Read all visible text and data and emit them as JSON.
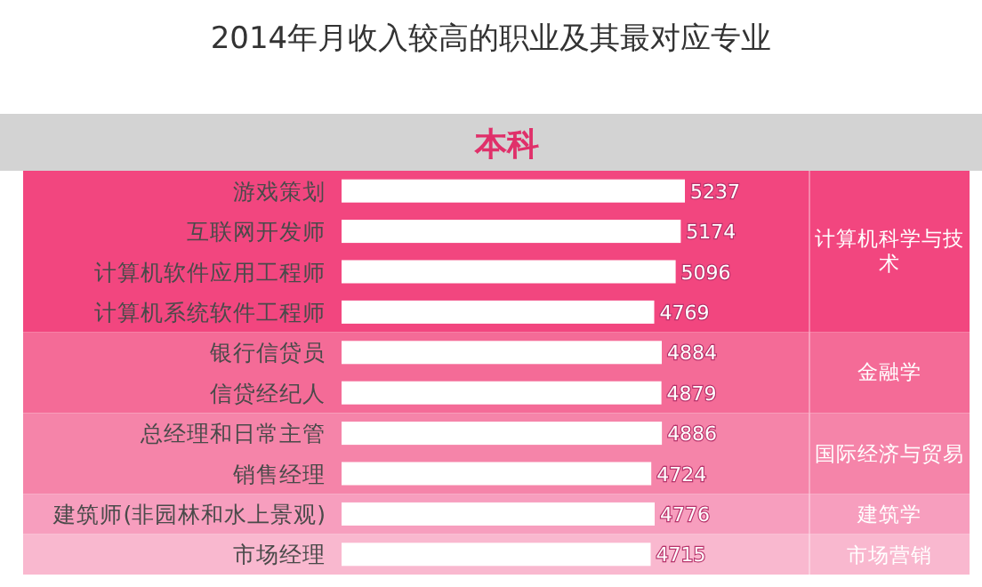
{
  "chart_data": {
    "type": "bar",
    "orientation": "horizontal",
    "title": "2014年月收入较高的职业及其最对应专业",
    "subtitle": "本科",
    "categories": [
      "游戏策划",
      "互联网开发师",
      "计算机软件应用工程师",
      "计算机系统软件工程师",
      "银行信贷员",
      "信贷经纪人",
      "总经理和日常主管",
      "销售经理",
      "建筑师(非园林和水上景观)",
      "市场经理"
    ],
    "values": [
      5237,
      5174,
      5096,
      4769,
      4884,
      4879,
      4886,
      4724,
      4776,
      4715
    ],
    "color": "#ffffff",
    "data_labels": true,
    "bands": [
      {
        "axis": "y",
        "from": "游戏策划",
        "to": "计算机系统软件工程师",
        "label": "计算机科学与技术",
        "color": "#f2467f"
      },
      {
        "axis": "y",
        "from": "银行信贷员",
        "to": "信贷经纪人",
        "label": "金融学",
        "color": "#f46b97"
      },
      {
        "axis": "y",
        "from": "总经理和日常主管",
        "to": "销售经理",
        "label": "国际经济与贸易",
        "color": "#f584a9"
      },
      {
        "axis": "y",
        "from": "建筑师(非园林和水上景观)",
        "to": "建筑师(非园林和水上景观)",
        "label": "建筑学",
        "color": "#f79ebe"
      },
      {
        "axis": "y",
        "from": "市场经理",
        "to": "市场经理",
        "label": "市场营销",
        "color": "#f9b8cf"
      }
    ]
  }
}
